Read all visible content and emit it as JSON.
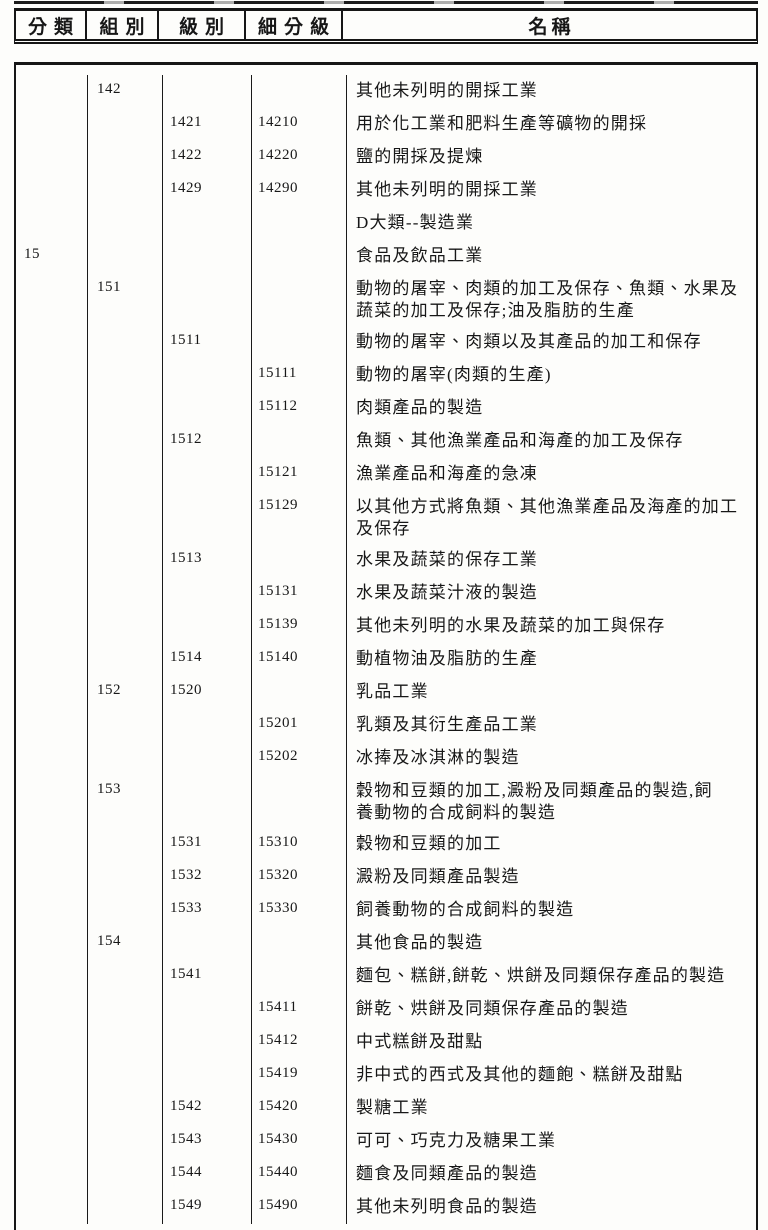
{
  "colors": {
    "ink": "#171717",
    "paper": "#fdfdfb"
  },
  "table": {
    "columns": [
      {
        "key": "division",
        "label": "分類"
      },
      {
        "key": "group",
        "label": "組別"
      },
      {
        "key": "class",
        "label": "級別"
      },
      {
        "key": "subclass",
        "label": "細分級"
      },
      {
        "key": "name",
        "label": "名稱"
      }
    ],
    "rows": [
      {
        "division": "",
        "group": "142",
        "class": "",
        "subclass": "",
        "name": "其他未列明的開採工業"
      },
      {
        "division": "",
        "group": "",
        "class": "1421",
        "subclass": "14210",
        "name": "用於化工業和肥料生產等礦物的開採"
      },
      {
        "division": "",
        "group": "",
        "class": "1422",
        "subclass": "14220",
        "name": "鹽的開採及提煉"
      },
      {
        "division": "",
        "group": "",
        "class": "1429",
        "subclass": "14290",
        "name": "其他未列明的開採工業"
      },
      {
        "division": "",
        "group": "",
        "class": "",
        "subclass": "",
        "name": "D大類--製造業"
      },
      {
        "division": "15",
        "group": "",
        "class": "",
        "subclass": "",
        "name": "食品及飲品工業"
      },
      {
        "division": "",
        "group": "151",
        "class": "",
        "subclass": "",
        "name": "動物的屠宰、肉類的加工及保存、魚類、水果及\n蔬菜的加工及保存;油及脂肪的生產"
      },
      {
        "division": "",
        "group": "",
        "class": "1511",
        "subclass": "",
        "name": "動物的屠宰、肉類以及其產品的加工和保存"
      },
      {
        "division": "",
        "group": "",
        "class": "",
        "subclass": "15111",
        "name": "動物的屠宰(肉類的生產)"
      },
      {
        "division": "",
        "group": "",
        "class": "",
        "subclass": "15112",
        "name": "肉類產品的製造"
      },
      {
        "division": "",
        "group": "",
        "class": "1512",
        "subclass": "",
        "name": "魚類、其他漁業產品和海產的加工及保存"
      },
      {
        "division": "",
        "group": "",
        "class": "",
        "subclass": "15121",
        "name": "漁業產品和海產的急凍"
      },
      {
        "division": "",
        "group": "",
        "class": "",
        "subclass": "15129",
        "name": "以其他方式將魚類、其他漁業產品及海產的加工\n及保存"
      },
      {
        "division": "",
        "group": "",
        "class": "1513",
        "subclass": "",
        "name": "水果及蔬菜的保存工業"
      },
      {
        "division": "",
        "group": "",
        "class": "",
        "subclass": "15131",
        "name": "水果及蔬菜汁液的製造"
      },
      {
        "division": "",
        "group": "",
        "class": "",
        "subclass": "15139",
        "name": "其他未列明的水果及蔬菜的加工與保存"
      },
      {
        "division": "",
        "group": "",
        "class": "1514",
        "subclass": "15140",
        "name": "動植物油及脂肪的生產"
      },
      {
        "division": "",
        "group": "152",
        "class": "1520",
        "subclass": "",
        "name": "乳品工業"
      },
      {
        "division": "",
        "group": "",
        "class": "",
        "subclass": "15201",
        "name": "乳類及其衍生產品工業"
      },
      {
        "division": "",
        "group": "",
        "class": "",
        "subclass": "15202",
        "name": "冰捧及冰淇淋的製造"
      },
      {
        "division": "",
        "group": "153",
        "class": "",
        "subclass": "",
        "name": "穀物和豆類的加工,澱粉及同類產品的製造,飼\n養動物的合成飼料的製造"
      },
      {
        "division": "",
        "group": "",
        "class": "1531",
        "subclass": "15310",
        "name": "穀物和豆類的加工"
      },
      {
        "division": "",
        "group": "",
        "class": "1532",
        "subclass": "15320",
        "name": "澱粉及同類產品製造"
      },
      {
        "division": "",
        "group": "",
        "class": "1533",
        "subclass": "15330",
        "name": "飼養動物的合成飼料的製造"
      },
      {
        "division": "",
        "group": "154",
        "class": "",
        "subclass": "",
        "name": "其他食品的製造"
      },
      {
        "division": "",
        "group": "",
        "class": "1541",
        "subclass": "",
        "name": "麵包、糕餅,餅乾、烘餅及同類保存產品的製造"
      },
      {
        "division": "",
        "group": "",
        "class": "",
        "subclass": "15411",
        "name": "餅乾、烘餅及同類保存產品的製造"
      },
      {
        "division": "",
        "group": "",
        "class": "",
        "subclass": "15412",
        "name": "中式糕餅及甜點"
      },
      {
        "division": "",
        "group": "",
        "class": "",
        "subclass": "15419",
        "name": "非中式的西式及其他的麵飽、糕餅及甜點"
      },
      {
        "division": "",
        "group": "",
        "class": "1542",
        "subclass": "15420",
        "name": "製糖工業"
      },
      {
        "division": "",
        "group": "",
        "class": "1543",
        "subclass": "15430",
        "name": "可可、巧克力及糖果工業"
      },
      {
        "division": "",
        "group": "",
        "class": "1544",
        "subclass": "15440",
        "name": "麵食及同類產品的製造"
      },
      {
        "division": "",
        "group": "",
        "class": "1549",
        "subclass": "15490",
        "name": "其他未列明食品的製造"
      }
    ]
  }
}
